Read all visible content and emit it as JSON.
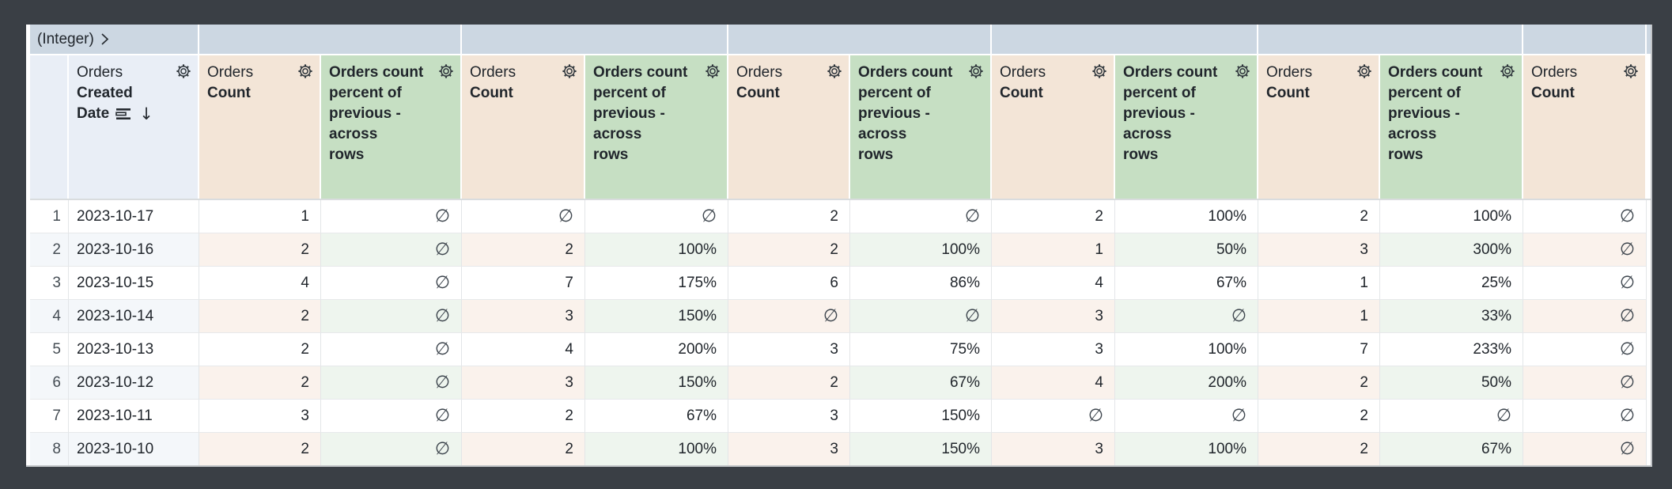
{
  "pivot": {
    "field_label": "(Integer)",
    "values": [
      "",
      "",
      "",
      "",
      "",
      ""
    ]
  },
  "header": {
    "dimension": {
      "view": "Orders",
      "field": "Created Date",
      "field_lines": [
        "Created",
        "Date"
      ],
      "sorted": "descending"
    },
    "measure": {
      "view": "Orders",
      "field": "Count"
    },
    "table_calc": {
      "label": "Orders count percent of previous - across rows",
      "label_lines": [
        "Orders count",
        "percent of",
        "previous -",
        "across",
        "rows"
      ]
    }
  },
  "icons": {
    "gear": "gear-icon",
    "expand_pivot": "chevron-right",
    "sorted_field": "list-bars",
    "sort_desc_arrow": "↓"
  },
  "table": {
    "null_symbol": "∅",
    "rows": [
      {
        "n": "1",
        "date": "2023-10-17",
        "values": [
          "1",
          "∅",
          "∅",
          "∅",
          "2",
          "∅",
          "2",
          "100%",
          "2",
          "100%",
          "∅"
        ]
      },
      {
        "n": "2",
        "date": "2023-10-16",
        "values": [
          "2",
          "∅",
          "2",
          "100%",
          "2",
          "100%",
          "1",
          "50%",
          "3",
          "300%",
          "∅"
        ]
      },
      {
        "n": "3",
        "date": "2023-10-15",
        "values": [
          "4",
          "∅",
          "7",
          "175%",
          "6",
          "86%",
          "4",
          "67%",
          "1",
          "25%",
          "∅"
        ]
      },
      {
        "n": "4",
        "date": "2023-10-14",
        "values": [
          "2",
          "∅",
          "3",
          "150%",
          "∅",
          "∅",
          "3",
          "∅",
          "1",
          "33%",
          "∅"
        ]
      },
      {
        "n": "5",
        "date": "2023-10-13",
        "values": [
          "2",
          "∅",
          "4",
          "200%",
          "3",
          "75%",
          "3",
          "100%",
          "7",
          "233%",
          "∅"
        ]
      },
      {
        "n": "6",
        "date": "2023-10-12",
        "values": [
          "2",
          "∅",
          "3",
          "150%",
          "2",
          "67%",
          "4",
          "200%",
          "2",
          "50%",
          "∅"
        ]
      },
      {
        "n": "7",
        "date": "2023-10-11",
        "values": [
          "3",
          "∅",
          "2",
          "67%",
          "3",
          "150%",
          "∅",
          "∅",
          "2",
          "∅",
          "∅"
        ]
      },
      {
        "n": "8",
        "date": "2023-10-10",
        "values": [
          "2",
          "∅",
          "2",
          "100%",
          "3",
          "150%",
          "3",
          "100%",
          "2",
          "67%",
          "∅"
        ]
      }
    ]
  },
  "colors": {
    "frame_background": "#3a3f45",
    "pivot_band": "#ccd7e2",
    "dimension_header": "#e9eef6",
    "measure_header": "#f3e5d7",
    "table_calc_header": "#c6dfc3",
    "even_row_measure_tint": "#faf2ec",
    "even_row_calc_tint": "#eef5ee",
    "text": "#21262c"
  }
}
